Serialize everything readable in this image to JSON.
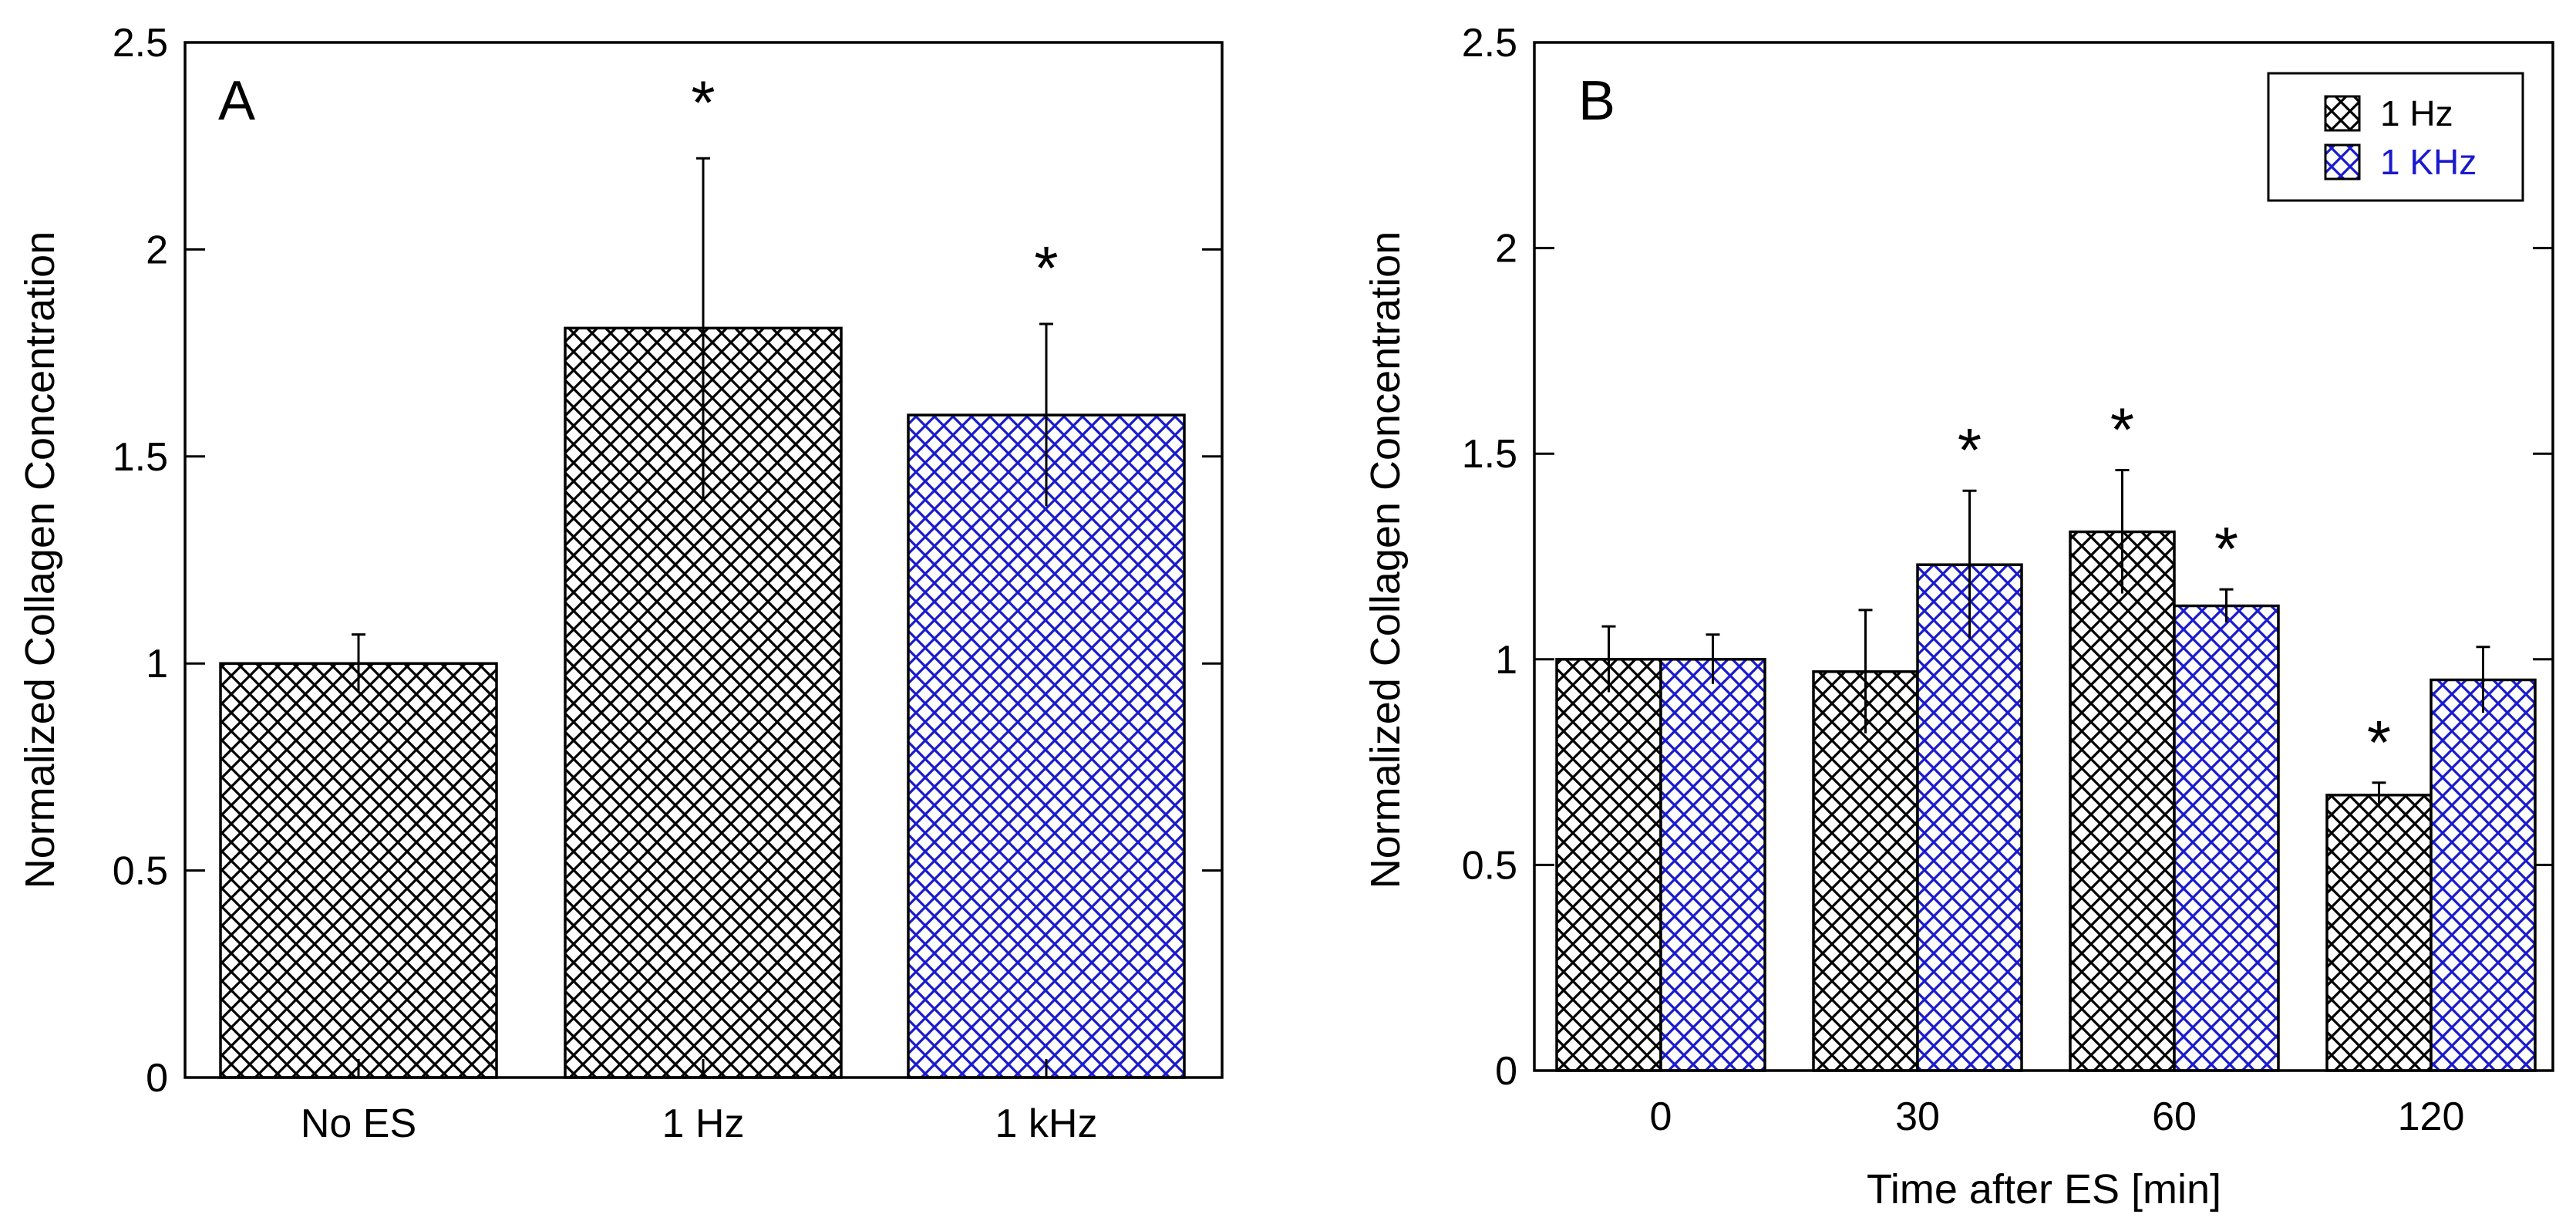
{
  "colors": {
    "black_series": "#000000",
    "blue_series": "#1a1acc",
    "legend_blue_text": "#1a1acc"
  },
  "chart_data": [
    {
      "panel": "A",
      "type": "bar",
      "title": "",
      "xlabel": "",
      "ylabel": "Normalized Collagen Concentration",
      "ylim": [
        0,
        2.5
      ],
      "yticks": [
        "0",
        "0.5",
        "1",
        "1.5",
        "2",
        "2.5"
      ],
      "grid": false,
      "categories": [
        "No ES",
        "1 Hz",
        "1 kHz"
      ],
      "values": [
        1.0,
        1.81,
        1.6
      ],
      "errors": [
        0.07,
        0.41,
        0.22
      ],
      "significant": [
        false,
        true,
        true
      ],
      "bar_colors": [
        "black",
        "black",
        "blue"
      ],
      "annotation_symbol": "*"
    },
    {
      "panel": "B",
      "type": "bar",
      "title": "",
      "xlabel": "Time after ES [min]",
      "ylabel": "Normalized Collagen Concentration",
      "ylim": [
        0,
        2.5
      ],
      "yticks": [
        "0",
        "0.5",
        "1",
        "1.5",
        "2",
        "2.5"
      ],
      "grid": false,
      "categories": [
        "0",
        "30",
        "60",
        "120"
      ],
      "legend_position": "top-right",
      "annotation_symbol": "*",
      "series": [
        {
          "name": "1 Hz",
          "color": "black",
          "values": [
            1.0,
            0.97,
            1.31,
            0.67
          ],
          "errors": [
            0.08,
            0.15,
            0.15,
            0.03
          ],
          "significant": [
            false,
            false,
            true,
            true
          ]
        },
        {
          "name": "1 KHz",
          "color": "blue",
          "values": [
            1.0,
            1.23,
            1.13,
            0.95
          ],
          "errors": [
            0.06,
            0.18,
            0.04,
            0.08
          ],
          "significant": [
            false,
            true,
            true,
            false
          ]
        }
      ]
    }
  ]
}
